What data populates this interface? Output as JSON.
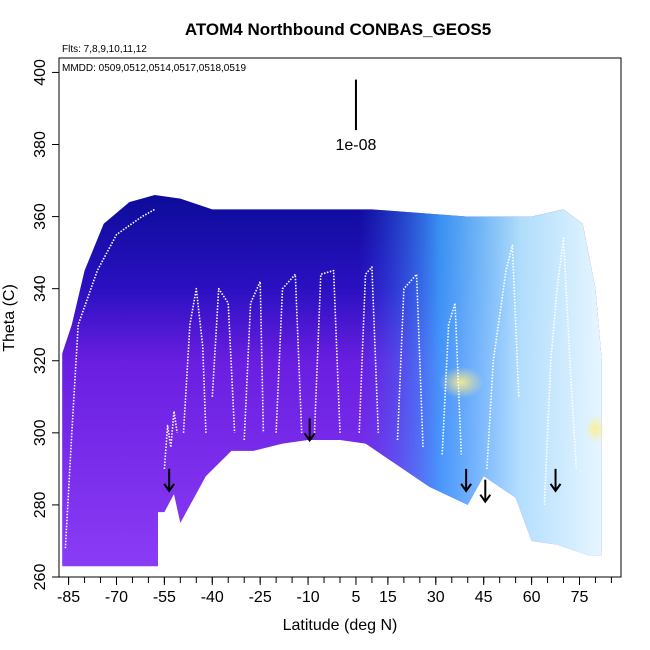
{
  "chart_data": {
    "type": "heatmap",
    "title": "ATOM4 Northbound CONBAS_GEOS5",
    "flights_note": "Flts: 7,8,9,10,11,12",
    "dates_note": "MMDD: 0509,0512,0514,0517,0518,0519",
    "scale_label": "1e-08",
    "scale_bar_theta": [
      384,
      398
    ],
    "scale_bar_lat": 5,
    "xlabel": "Latitude (deg N)",
    "ylabel": "Theta (C)",
    "xlim": [
      -88,
      88
    ],
    "ylim": [
      260,
      404
    ],
    "xticks": [
      -85,
      -70,
      -55,
      -40,
      -25,
      -10,
      5,
      15,
      30,
      45,
      60,
      75
    ],
    "xticks_minor_step": 5,
    "yticks": [
      260,
      280,
      300,
      320,
      340,
      360,
      380,
      400
    ],
    "colors": {
      "low": "#7b2bef",
      "mid": "#1010c8",
      "high": "#ffffff",
      "peak": "#ffee88",
      "profile": "#ffffff",
      "arrow": "#000000"
    },
    "arrows_lat": [
      -53.5,
      -9.5,
      39.5,
      45.5,
      67.5
    ],
    "arrows_theta_top": [
      290,
      304,
      290,
      287,
      290
    ],
    "boundary_lower": [
      [
        -55,
        278
      ],
      [
        -52,
        283
      ],
      [
        -50,
        275
      ],
      [
        -42,
        288
      ],
      [
        -34,
        295
      ],
      [
        -27,
        295
      ],
      [
        -18,
        297
      ],
      [
        -10,
        298
      ],
      [
        0,
        298
      ],
      [
        8,
        297
      ],
      [
        18,
        291
      ],
      [
        28,
        285
      ],
      [
        40,
        280
      ],
      [
        45,
        288
      ],
      [
        55,
        282
      ],
      [
        60,
        270
      ],
      [
        68,
        269
      ],
      [
        78,
        266
      ],
      [
        82,
        266
      ]
    ],
    "boundary_upper": [
      [
        -87,
        322
      ],
      [
        -84,
        330
      ],
      [
        -80,
        345
      ],
      [
        -74,
        358
      ],
      [
        -66,
        364
      ],
      [
        -58,
        366
      ],
      [
        -50,
        365
      ],
      [
        -40,
        362
      ],
      [
        -20,
        362
      ],
      [
        10,
        362
      ],
      [
        40,
        360
      ],
      [
        60,
        360
      ],
      [
        70,
        362
      ],
      [
        76,
        358
      ],
      [
        80,
        340
      ],
      [
        82,
        320
      ]
    ],
    "profiles": [
      {
        "lat0": -86,
        "pts": [
          [
            -86,
            268
          ],
          [
            -84,
            300
          ],
          [
            -82,
            330
          ],
          [
            -76,
            345
          ],
          [
            -70,
            355
          ],
          [
            -62,
            360
          ],
          [
            -58,
            362
          ]
        ]
      },
      {
        "lat0": -53,
        "pts": [
          [
            -55,
            290
          ],
          [
            -54,
            302
          ],
          [
            -53,
            296
          ],
          [
            -52,
            306
          ],
          [
            -51,
            300
          ]
        ]
      },
      {
        "lat0": -48,
        "pts": [
          [
            -49,
            300
          ],
          [
            -47,
            330
          ],
          [
            -45,
            340
          ],
          [
            -43,
            324
          ],
          [
            -42,
            300
          ]
        ]
      },
      {
        "lat0": -38,
        "pts": [
          [
            -40,
            310
          ],
          [
            -38,
            340
          ],
          [
            -35,
            336
          ],
          [
            -33,
            300
          ]
        ]
      },
      {
        "lat0": -28,
        "pts": [
          [
            -30,
            298
          ],
          [
            -28,
            336
          ],
          [
            -25,
            342
          ],
          [
            -24,
            300
          ]
        ]
      },
      {
        "lat0": -18,
        "pts": [
          [
            -20,
            300
          ],
          [
            -18,
            340
          ],
          [
            -14,
            344
          ],
          [
            -12,
            300
          ]
        ]
      },
      {
        "lat0": -6,
        "pts": [
          [
            -8,
            300
          ],
          [
            -6,
            344
          ],
          [
            -2,
            345
          ],
          [
            0,
            300
          ]
        ]
      },
      {
        "lat0": 8,
        "pts": [
          [
            6,
            300
          ],
          [
            8,
            344
          ],
          [
            10,
            346
          ],
          [
            12,
            300
          ]
        ]
      },
      {
        "lat0": 20,
        "pts": [
          [
            18,
            298
          ],
          [
            20,
            340
          ],
          [
            24,
            344
          ],
          [
            26,
            296
          ]
        ]
      },
      {
        "lat0": 34,
        "pts": [
          [
            32,
            294
          ],
          [
            34,
            330
          ],
          [
            36,
            336
          ],
          [
            38,
            294
          ]
        ]
      },
      {
        "lat0": 48,
        "pts": [
          [
            46,
            290
          ],
          [
            48,
            320
          ],
          [
            52,
            345
          ],
          [
            54,
            352
          ],
          [
            56,
            310
          ]
        ]
      },
      {
        "lat0": 68,
        "pts": [
          [
            64,
            280
          ],
          [
            66,
            320
          ],
          [
            68,
            340
          ],
          [
            70,
            354
          ],
          [
            72,
            320
          ],
          [
            74,
            290
          ]
        ]
      }
    ]
  }
}
